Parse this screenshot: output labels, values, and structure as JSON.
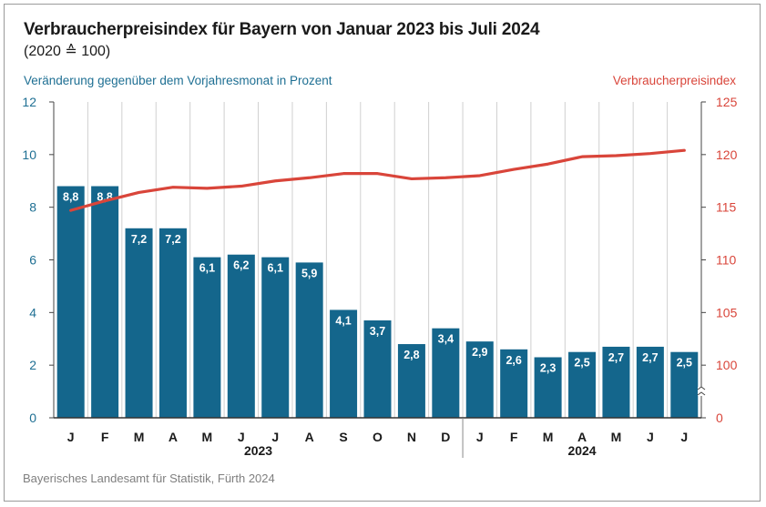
{
  "header": {
    "title": "Verbraucherpreisindex für Bayern von Januar 2023 bis Juli 2024",
    "subtitle": "(2020 ≙ 100)"
  },
  "source": "Bayerisches Landesamt für Statistik, Fürth 2024",
  "chart_data": {
    "type": "bar",
    "categories": [
      "J",
      "F",
      "M",
      "A",
      "M",
      "J",
      "J",
      "A",
      "S",
      "O",
      "N",
      "D",
      "J",
      "F",
      "M",
      "A",
      "M",
      "J",
      "J"
    ],
    "year_labels": [
      {
        "label": "2023",
        "from": 0,
        "to": 11
      },
      {
        "label": "2024",
        "from": 12,
        "to": 18
      }
    ],
    "series": [
      {
        "name": "Veränderung gegenüber dem Vorjahresmonat in Prozent",
        "type": "bar",
        "axis": "left",
        "color": "#14668c",
        "values": [
          8.8,
          8.8,
          7.2,
          7.2,
          6.1,
          6.2,
          6.1,
          5.9,
          4.1,
          3.7,
          2.8,
          3.4,
          2.9,
          2.6,
          2.3,
          2.5,
          2.7,
          2.7,
          2.5
        ],
        "labels": [
          "8,8",
          "8,8",
          "7,2",
          "7,2",
          "6,1",
          "6,2",
          "6,1",
          "5,9",
          "4,1",
          "3,7",
          "2,8",
          "3,4",
          "2,9",
          "2,6",
          "2,3",
          "2,5",
          "2,7",
          "2,7",
          "2,5"
        ]
      },
      {
        "name": "Verbraucherpreisindex",
        "type": "line",
        "axis": "right",
        "color": "#d9453a",
        "values": [
          114.7,
          115.6,
          116.4,
          116.9,
          116.8,
          117.0,
          117.5,
          117.8,
          118.2,
          118.2,
          117.7,
          117.8,
          118.0,
          118.6,
          119.1,
          119.8,
          119.9,
          120.1,
          120.4
        ]
      }
    ],
    "y_left": {
      "label": "Veränderung gegenüber dem Vorjahresmonat in Prozent",
      "ylim": [
        0,
        12
      ],
      "ticks": [
        0,
        2,
        4,
        6,
        8,
        10,
        12
      ]
    },
    "y_right": {
      "label": "Verbraucherpreisindex",
      "ylim": [
        95,
        125
      ],
      "ticks": [
        "0",
        "100",
        "105",
        "110",
        "115",
        "120",
        "125"
      ],
      "axis_break": true
    },
    "grid": "vertical"
  }
}
